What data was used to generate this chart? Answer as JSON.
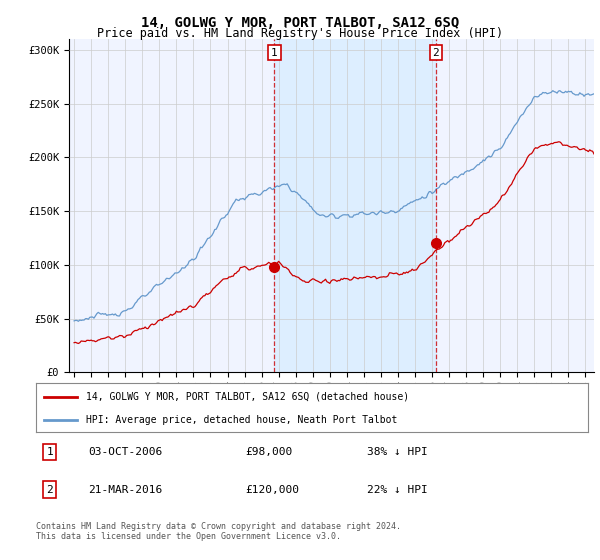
{
  "title": "14, GOLWG Y MOR, PORT TALBOT, SA12 6SQ",
  "subtitle": "Price paid vs. HM Land Registry's House Price Index (HPI)",
  "ylabel_ticks": [
    "£0",
    "£50K",
    "£100K",
    "£150K",
    "£200K",
    "£250K",
    "£300K"
  ],
  "ytick_values": [
    0,
    50000,
    100000,
    150000,
    200000,
    250000,
    300000
  ],
  "ylim": [
    0,
    310000
  ],
  "xlim_start": 1994.7,
  "xlim_end": 2025.5,
  "legend_line1": "14, GOLWG Y MOR, PORT TALBOT, SA12 6SQ (detached house)",
  "legend_line2": "HPI: Average price, detached house, Neath Port Talbot",
  "transaction1_date": "03-OCT-2006",
  "transaction1_price": "£98,000",
  "transaction1_pct": "38% ↓ HPI",
  "transaction1_x": 2006.75,
  "transaction1_y": 98000,
  "transaction2_date": "21-MAR-2016",
  "transaction2_price": "£120,000",
  "transaction2_pct": "22% ↓ HPI",
  "transaction2_x": 2016.22,
  "transaction2_y": 120000,
  "red_line_color": "#cc0000",
  "blue_line_color": "#6699cc",
  "shade_color": "#ddeeff",
  "background_color": "#f0f4ff",
  "plot_bg_color": "#ffffff",
  "footer_text": "Contains HM Land Registry data © Crown copyright and database right 2024.\nThis data is licensed under the Open Government Licence v3.0.",
  "title_fontsize": 10,
  "subtitle_fontsize": 8.5,
  "tick_fontsize": 7.5
}
